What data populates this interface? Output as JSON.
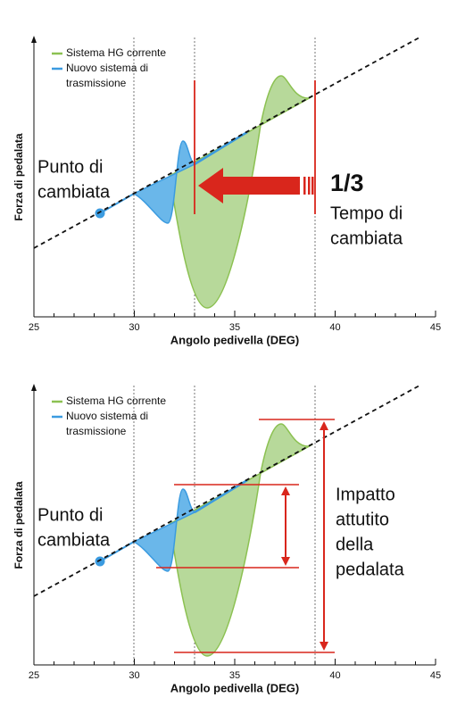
{
  "charts": [
    {
      "ylabel": "Forza di pedalata",
      "xlabel": "Angolo pedivella (DEG)",
      "xlim": [
        25,
        45
      ],
      "xticks": [
        25,
        30,
        35,
        40,
        45
      ],
      "legend": [
        {
          "lines": [
            "Sistema HG corrente"
          ],
          "color": "#8cc152"
        },
        {
          "lines": [
            "Nuovo sistema di",
            "trasmissione"
          ],
          "color": "#3b9be0"
        }
      ],
      "point_label": [
        "Punto di",
        "cambiata"
      ],
      "fraction": "1/3",
      "annotation": [
        "Tempo di",
        "cambiata"
      ]
    },
    {
      "ylabel": "Forza di pedalata",
      "xlabel": "Angolo pedivella (DEG)",
      "xlim": [
        25,
        45
      ],
      "xticks": [
        25,
        30,
        35,
        40,
        45
      ],
      "legend": [
        {
          "lines": [
            "Sistema HG corrente"
          ],
          "color": "#8cc152"
        },
        {
          "lines": [
            "Nuovo sistema di",
            "trasmissione"
          ],
          "color": "#3b9be0"
        }
      ],
      "point_label": [
        "Punto di",
        "cambiata"
      ],
      "annotation": [
        "Impatto",
        "attutito",
        "della",
        "pedalata"
      ]
    }
  ]
}
